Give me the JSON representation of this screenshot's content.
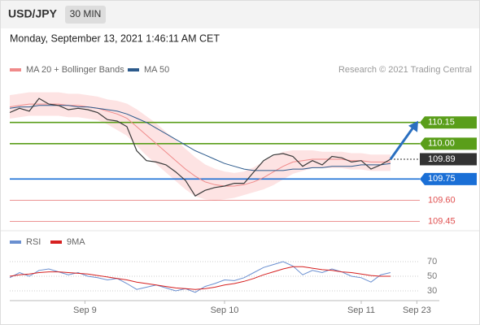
{
  "chart_data": {
    "type": "line",
    "title": "USD/JPY",
    "interval": "30 MIN",
    "timestamp": "Monday, September 13, 2021 1:46:11 AM CET",
    "credit": "Research © 2021 Trading Central",
    "xlim": [
      0,
      42
    ],
    "xticks": [
      {
        "value": 7.7,
        "label": "Sep 9"
      },
      {
        "value": 22,
        "label": "Sep 10"
      },
      {
        "value": 36,
        "label": "Sep 11"
      },
      {
        "value": 41.7,
        "label": "Sep 23"
      }
    ],
    "ylim": [
      109.39,
      110.47
    ],
    "price": {
      "color": "#3a3a3a",
      "values": [
        110.22,
        110.25,
        110.23,
        110.32,
        110.28,
        110.27,
        110.24,
        110.25,
        110.24,
        110.22,
        110.17,
        110.16,
        110.12,
        109.95,
        109.88,
        109.87,
        109.85,
        109.8,
        109.74,
        109.63,
        109.67,
        109.69,
        109.7,
        109.72,
        109.72,
        109.8,
        109.88,
        109.92,
        109.93,
        109.91,
        109.84,
        109.88,
        109.85,
        109.91,
        109.9,
        109.87,
        109.88,
        109.82,
        109.85,
        109.89
      ]
    },
    "series": [
      {
        "name": "MA 20 + Bollinger Bands",
        "color": "#f08a8a",
        "band_color": "#fde3e3",
        "values": [
          110.26,
          110.27,
          110.28,
          110.28,
          110.28,
          110.28,
          110.27,
          110.27,
          110.26,
          110.25,
          110.23,
          110.21,
          110.18,
          110.12,
          110.06,
          110.0,
          109.94,
          109.88,
          109.82,
          109.77,
          109.73,
          109.71,
          109.7,
          109.7,
          109.71,
          109.73,
          109.76,
          109.8,
          109.84,
          109.87,
          109.88,
          109.89,
          109.89,
          109.89,
          109.89,
          109.88,
          109.88,
          109.87,
          109.87,
          109.87
        ],
        "upper": [
          110.34,
          110.35,
          110.36,
          110.36,
          110.36,
          110.36,
          110.35,
          110.35,
          110.34,
          110.33,
          110.31,
          110.3,
          110.28,
          110.24,
          110.19,
          110.14,
          110.08,
          110.02,
          109.96,
          109.9,
          109.85,
          109.82,
          109.8,
          109.79,
          109.8,
          109.83,
          109.87,
          109.91,
          109.94,
          109.95,
          109.95,
          109.95,
          109.94,
          109.94,
          109.94,
          109.93,
          109.93,
          109.92,
          109.92,
          109.92
        ],
        "lower": [
          110.18,
          110.19,
          110.2,
          110.2,
          110.2,
          110.2,
          110.19,
          110.19,
          110.18,
          110.17,
          110.14,
          110.1,
          110.06,
          109.99,
          109.92,
          109.86,
          109.8,
          109.74,
          109.68,
          109.63,
          109.61,
          109.6,
          109.61,
          109.62,
          109.64,
          109.66,
          109.68,
          109.71,
          109.75,
          109.79,
          109.81,
          109.83,
          109.83,
          109.83,
          109.83,
          109.82,
          109.82,
          109.81,
          109.81,
          109.81
        ]
      },
      {
        "name": "MA 50",
        "color": "#2c5a8c",
        "values": [
          110.25,
          110.26,
          110.26,
          110.27,
          110.27,
          110.27,
          110.27,
          110.26,
          110.26,
          110.25,
          110.24,
          110.23,
          110.21,
          110.18,
          110.15,
          110.11,
          110.07,
          110.03,
          109.99,
          109.95,
          109.92,
          109.89,
          109.86,
          109.84,
          109.82,
          109.81,
          109.81,
          109.81,
          109.81,
          109.82,
          109.82,
          109.83,
          109.83,
          109.84,
          109.84,
          109.84,
          109.85,
          109.85,
          109.85,
          109.86
        ]
      }
    ],
    "levels": [
      {
        "value": 110.15,
        "label": "110.15",
        "color": "#5a9e1a",
        "style": "box"
      },
      {
        "value": 110.0,
        "label": "110.00",
        "color": "#5a9e1a",
        "style": "box"
      },
      {
        "value": 109.89,
        "label": "109.89",
        "color": "#333333",
        "style": "current"
      },
      {
        "value": 109.75,
        "label": "109.75",
        "color": "#1a6fd6",
        "style": "box"
      },
      {
        "value": 109.6,
        "label": "109.60",
        "color": "#e05050",
        "style": "text"
      },
      {
        "value": 109.45,
        "label": "109.45",
        "color": "#e05050",
        "style": "text"
      }
    ],
    "arrow_color": "#2a6fc0",
    "rsi": {
      "ylim": [
        20,
        80
      ],
      "yticks": [
        70,
        50,
        30
      ],
      "series": [
        {
          "name": "RSI",
          "color": "#6a8fd0",
          "values": [
            48,
            55,
            50,
            58,
            60,
            56,
            52,
            55,
            50,
            48,
            45,
            47,
            40,
            32,
            35,
            38,
            34,
            30,
            33,
            28,
            36,
            40,
            45,
            44,
            48,
            55,
            62,
            66,
            70,
            64,
            52,
            58,
            55,
            60,
            56,
            50,
            48,
            42,
            52,
            55
          ]
        },
        {
          "name": "9MA",
          "color": "#d62020",
          "values": [
            50,
            52,
            53,
            55,
            56,
            56,
            55,
            54,
            53,
            51,
            49,
            47,
            45,
            42,
            40,
            38,
            36,
            34,
            33,
            32,
            33,
            35,
            38,
            40,
            43,
            47,
            52,
            56,
            60,
            63,
            63,
            61,
            59,
            58,
            56,
            55,
            53,
            51,
            50,
            50
          ]
        }
      ]
    }
  }
}
